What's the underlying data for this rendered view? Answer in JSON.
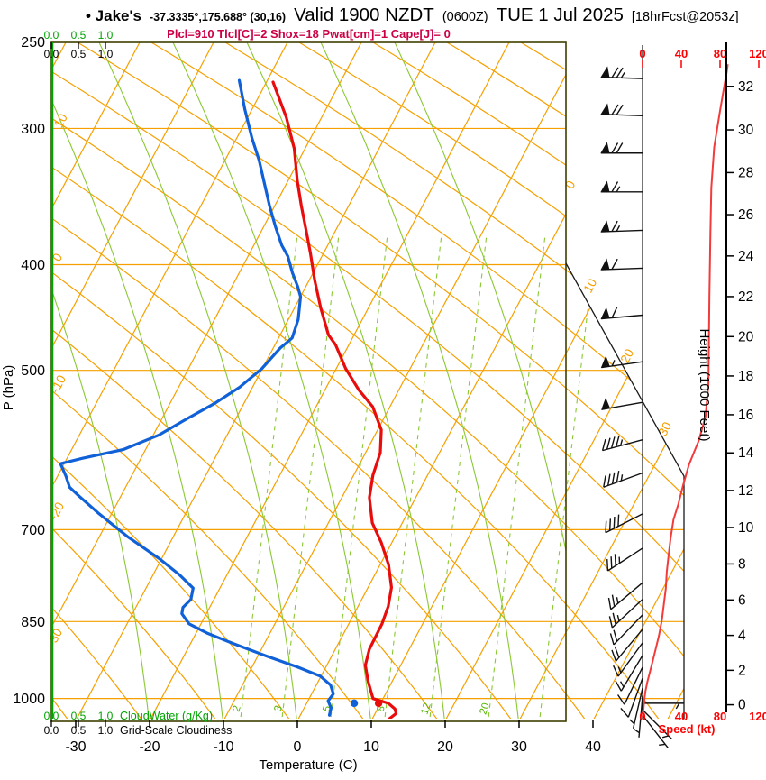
{
  "title": {
    "station": "• Jake's",
    "coordinates": "-37.3335°,175.688° (30,16)",
    "valid": "Valid 1900 NZDT",
    "valid_utc": "(0600Z)",
    "date": "TUE 1 Jul 2025",
    "forecast": "[18hrFcst@2053z]"
  },
  "indices_line": "Plcl=910 Tlcl[C]=2 Shox=18 Pwat[cm]=1 Cape[J]= 0",
  "axes": {
    "pressure": {
      "label": "P (hPa)",
      "ticks": [
        "250",
        "300",
        "400",
        "500",
        "700",
        "850",
        "1000"
      ]
    },
    "temperature": {
      "label": "Temperature (C)",
      "ticks": [
        "-30",
        "-20",
        "-10",
        "0",
        "10",
        "20",
        "30",
        "40"
      ]
    },
    "height": {
      "label": "Height (1000 Feet)",
      "ticks": [
        "0",
        "2",
        "4",
        "6",
        "8",
        "10",
        "12",
        "14",
        "16",
        "18",
        "20",
        "22",
        "24",
        "26",
        "28",
        "30",
        "32"
      ]
    },
    "speed": {
      "label": "Speed (kt)",
      "ticks": [
        "0",
        "40",
        "80",
        "120"
      ]
    },
    "cloudwater": {
      "label": "CloudWater (g/Kg)",
      "ticks": [
        "0.0",
        "0.5",
        "1.0"
      ]
    },
    "cloudiness": {
      "label": "Grid-Scale Cloudiness",
      "ticks": [
        "0.0",
        "0.5",
        "1.0"
      ]
    }
  },
  "grid_labels": {
    "isotherms_left": [
      "10",
      "0",
      "-10",
      "-20",
      "-30"
    ],
    "isotherms_right": [
      "0",
      "10",
      "20",
      "30"
    ],
    "mixing_ratio": [
      "2",
      "3",
      "5",
      "8",
      "12",
      "20"
    ]
  },
  "colors": {
    "grid_orange": "#f5a000",
    "moist_green": "#8bc832",
    "mixing_green": "#55b400",
    "cloudwater_green": "#00a300",
    "temperature_red": "#e80c0c",
    "dewpoint_blue": "#1060d8",
    "speed_red": "#f23b3b",
    "scale_red": "#ff0000",
    "border_olive": "#3f3f00",
    "indices_magenta": "#cc0044",
    "barb_black": "#111111"
  },
  "chart_data": {
    "type": "skewt_log_p_sounding",
    "pressure_axis_hpa": [
      250,
      1050
    ],
    "temperature_axis_c": [
      -33,
      40
    ],
    "temperature_profile_c": [
      [
        272,
        -48.8
      ],
      [
        293,
        -44.5
      ],
      [
        313,
        -41.2
      ],
      [
        335,
        -38.5
      ],
      [
        353,
        -36.2
      ],
      [
        371,
        -33.9
      ],
      [
        391,
        -31.5
      ],
      [
        413,
        -29.1
      ],
      [
        438,
        -26.3
      ],
      [
        464,
        -23.3
      ],
      [
        474,
        -21.6
      ],
      [
        498,
        -18.6
      ],
      [
        521,
        -15.3
      ],
      [
        540,
        -12.2
      ],
      [
        567,
        -9.4
      ],
      [
        595,
        -7.9
      ],
      [
        624,
        -7.3
      ],
      [
        654,
        -6.2
      ],
      [
        690,
        -4.0
      ],
      [
        719,
        -1.4
      ],
      [
        754,
        1.2
      ],
      [
        791,
        3.2
      ],
      [
        823,
        4.1
      ],
      [
        854,
        4.5
      ],
      [
        901,
        4.6
      ],
      [
        932,
        5.2
      ],
      [
        964,
        6.7
      ],
      [
        1000,
        8.6
      ],
      [
        1010,
        11.0
      ],
      [
        1022,
        12.3
      ],
      [
        1032,
        12.8
      ],
      [
        1045,
        12.2
      ]
    ],
    "dewpoint_profile_c": [
      [
        271,
        -53.5
      ],
      [
        288,
        -50.7
      ],
      [
        306,
        -47.7
      ],
      [
        321,
        -45.1
      ],
      [
        338,
        -42.6
      ],
      [
        353,
        -40.5
      ],
      [
        369,
        -38.2
      ],
      [
        384,
        -36.0
      ],
      [
        393,
        -34.4
      ],
      [
        407,
        -32.6
      ],
      [
        419,
        -30.9
      ],
      [
        428,
        -29.8
      ],
      [
        449,
        -28.5
      ],
      [
        467,
        -28.0
      ],
      [
        477,
        -28.9
      ],
      [
        498,
        -29.9
      ],
      [
        518,
        -31.6
      ],
      [
        536,
        -33.8
      ],
      [
        554,
        -36.5
      ],
      [
        573,
        -39.1
      ],
      [
        591,
        -42.9
      ],
      [
        602,
        -47.8
      ],
      [
        609,
        -50.4
      ],
      [
        625,
        -48.8
      ],
      [
        640,
        -47.5
      ],
      [
        652,
        -45.6
      ],
      [
        677,
        -41.6
      ],
      [
        710,
        -36.2
      ],
      [
        744,
        -30.3
      ],
      [
        770,
        -26.4
      ],
      [
        792,
        -23.6
      ],
      [
        811,
        -23.1
      ],
      [
        825,
        -23.6
      ],
      [
        836,
        -23.3
      ],
      [
        854,
        -21.6
      ],
      [
        871,
        -18.5
      ],
      [
        890,
        -14.3
      ],
      [
        914,
        -8.9
      ],
      [
        936,
        -3.8
      ],
      [
        954,
        -0.1
      ],
      [
        972,
        1.9
      ],
      [
        990,
        2.9
      ],
      [
        1005,
        2.7
      ],
      [
        1020,
        3.6
      ],
      [
        1036,
        3.9
      ]
    ],
    "wind_speed_profile_kt": [
      [
        262,
        88
      ],
      [
        266,
        87
      ],
      [
        289,
        80
      ],
      [
        312,
        74
      ],
      [
        340,
        71
      ],
      [
        374,
        70
      ],
      [
        427,
        69
      ],
      [
        515,
        68
      ],
      [
        551,
        65
      ],
      [
        580,
        58
      ],
      [
        610,
        48
      ],
      [
        637,
        42
      ],
      [
        663,
        37
      ],
      [
        685,
        32
      ],
      [
        712,
        29
      ],
      [
        738,
        27
      ],
      [
        765,
        25
      ],
      [
        793,
        24
      ],
      [
        820,
        22
      ],
      [
        847,
        20
      ],
      [
        875,
        17
      ],
      [
        905,
        13
      ],
      [
        935,
        9
      ],
      [
        965,
        5
      ],
      [
        985,
        3
      ],
      [
        1000,
        2
      ],
      [
        1020,
        1
      ],
      [
        1040,
        0
      ]
    ],
    "wind_barbs": [
      [
        270,
        272,
        75
      ],
      [
        292,
        272,
        70
      ],
      [
        316,
        270,
        70
      ],
      [
        343,
        270,
        65
      ],
      [
        372,
        268,
        65
      ],
      [
        403,
        268,
        60
      ],
      [
        445,
        265,
        60
      ],
      [
        491,
        262,
        55
      ],
      [
        535,
        260,
        50
      ],
      [
        579,
        255,
        45
      ],
      [
        621,
        250,
        45
      ],
      [
        677,
        243,
        40
      ],
      [
        728,
        237,
        35
      ],
      [
        783,
        230,
        28
      ],
      [
        811,
        227,
        25
      ],
      [
        838,
        224,
        22
      ],
      [
        864,
        220,
        20
      ],
      [
        889,
        216,
        18
      ],
      [
        913,
        211,
        15
      ],
      [
        936,
        206,
        12
      ],
      [
        958,
        200,
        10
      ],
      [
        978,
        193,
        8
      ],
      [
        995,
        185,
        7
      ],
      [
        1010,
        90,
        7
      ],
      [
        1024,
        135,
        6
      ],
      [
        1036,
        142,
        8
      ]
    ],
    "surface_markers": {
      "temperature": {
        "p": 1010,
        "t": 9.7
      },
      "dewpoint": {
        "p": 1010,
        "t": 6.4
      }
    },
    "cloud_water_gkg": 0,
    "grid_scale_cloudiness": 0
  }
}
